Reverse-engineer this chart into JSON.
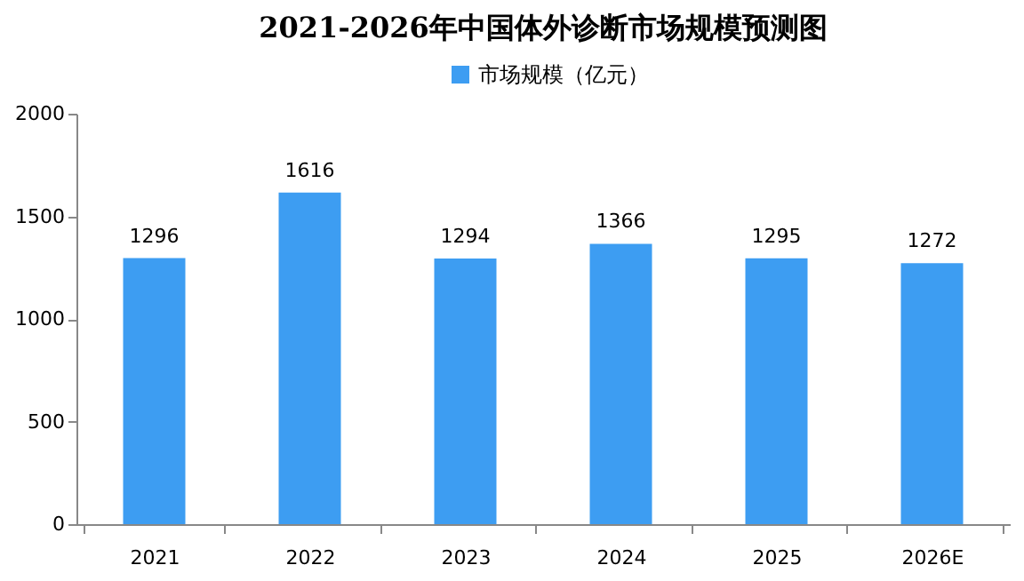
{
  "chart_data": {
    "type": "bar",
    "title": "2021-2026年中国体外诊断市场规模预测图",
    "categories": [
      "2021",
      "2022",
      "2023",
      "2024",
      "2025",
      "2026E"
    ],
    "series": [
      {
        "name": "市场规模（亿元）",
        "color": "#3d9df2",
        "values": [
          1296,
          1616,
          1294,
          1366,
          1295,
          1272
        ]
      }
    ],
    "ylim": [
      0,
      2000
    ],
    "yticks": [
      0,
      500,
      1000,
      1500,
      2000
    ],
    "grid": false,
    "legend": "top",
    "data_labels": true
  }
}
